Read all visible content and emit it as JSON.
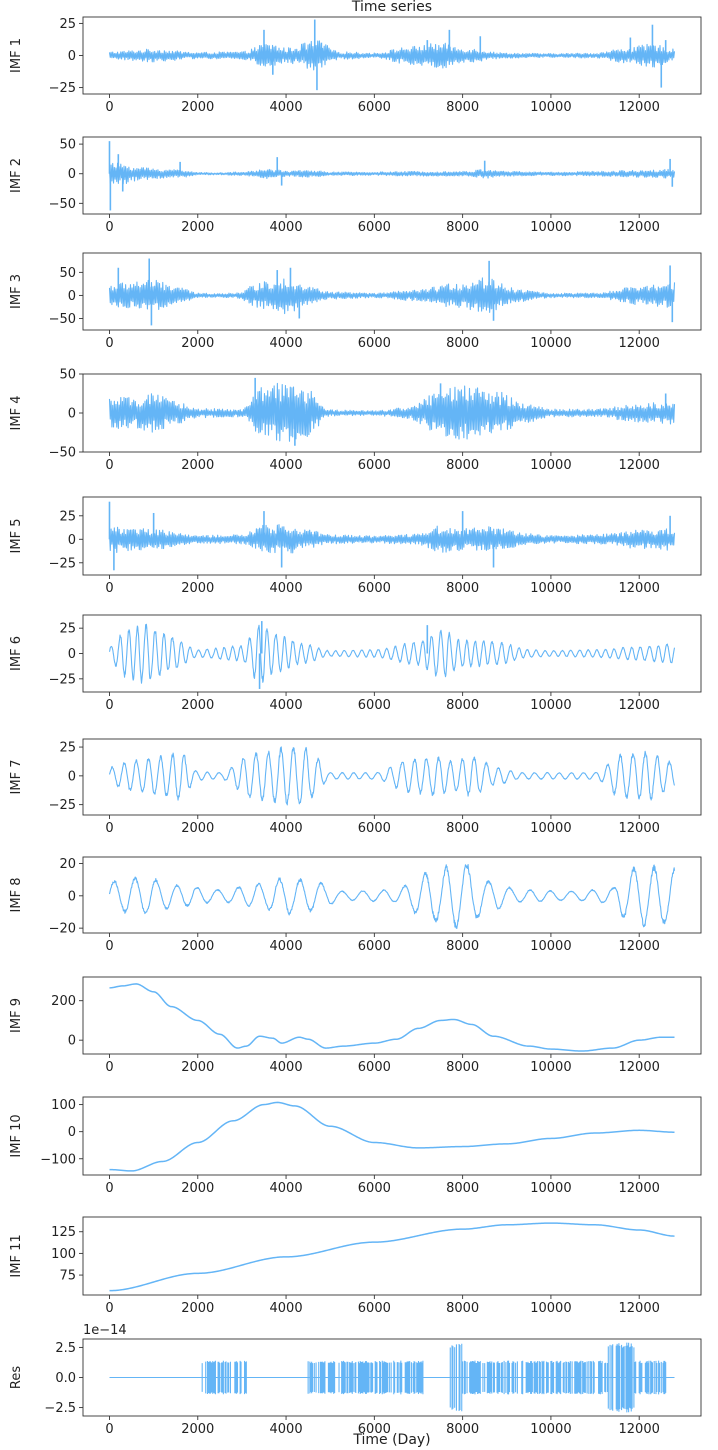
{
  "chart_data": {
    "type": "line",
    "title": "Time series",
    "xlabel": "Time (Day)",
    "xlim": [
      -600,
      13400
    ],
    "xticks": [
      0,
      2000,
      4000,
      6000,
      8000,
      10000,
      12000
    ],
    "x_range": [
      0,
      12800
    ],
    "line_color": "#64b5f6",
    "subplots": [
      {
        "ylabel": "IMF 1",
        "ylim": [
          -30,
          30
        ],
        "yticks": [
          -25,
          0,
          25
        ],
        "mode": "noise",
        "envelope": [
          [
            0,
            3
          ],
          [
            1000,
            5
          ],
          [
            2000,
            2.5
          ],
          [
            3000,
            3
          ],
          [
            3600,
            10
          ],
          [
            4000,
            6
          ],
          [
            4700,
            12
          ],
          [
            5200,
            3
          ],
          [
            6000,
            2
          ],
          [
            6800,
            7
          ],
          [
            7500,
            10
          ],
          [
            8000,
            6
          ],
          [
            9000,
            2
          ],
          [
            10000,
            1.5
          ],
          [
            11000,
            2
          ],
          [
            11700,
            6
          ],
          [
            12300,
            9
          ],
          [
            12800,
            5
          ]
        ],
        "spikes": [
          [
            3500,
            20
          ],
          [
            3700,
            -15
          ],
          [
            4650,
            28
          ],
          [
            4700,
            -27
          ],
          [
            4800,
            10
          ],
          [
            7200,
            12
          ],
          [
            7700,
            20
          ],
          [
            8400,
            15
          ],
          [
            11800,
            14
          ],
          [
            12300,
            24
          ],
          [
            12500,
            -25
          ],
          [
            12600,
            12
          ]
        ]
      },
      {
        "ylabel": "IMF 2",
        "ylim": [
          -68,
          62
        ],
        "yticks": [
          -50,
          0,
          50
        ],
        "mode": "noise",
        "envelope": [
          [
            0,
            18
          ],
          [
            300,
            18
          ],
          [
            600,
            12
          ],
          [
            1200,
            8
          ],
          [
            1700,
            7
          ],
          [
            2000,
            2
          ],
          [
            2500,
            2
          ],
          [
            3000,
            3
          ],
          [
            3600,
            8
          ],
          [
            4000,
            5
          ],
          [
            4600,
            6
          ],
          [
            5000,
            3
          ],
          [
            6000,
            3
          ],
          [
            7000,
            4
          ],
          [
            8000,
            4
          ],
          [
            8600,
            8
          ],
          [
            9000,
            4
          ],
          [
            10000,
            3
          ],
          [
            11000,
            4
          ],
          [
            12000,
            6
          ],
          [
            12800,
            8
          ]
        ],
        "spikes": [
          [
            0,
            55
          ],
          [
            20,
            -62
          ],
          [
            200,
            33
          ],
          [
            300,
            -30
          ],
          [
            1600,
            20
          ],
          [
            3800,
            28
          ],
          [
            3900,
            -20
          ],
          [
            8500,
            22
          ],
          [
            12700,
            25
          ],
          [
            12750,
            -22
          ]
        ]
      },
      {
        "ylabel": "IMF 3",
        "ylim": [
          -75,
          92
        ],
        "yticks": [
          -50,
          0,
          50
        ],
        "mode": "noise",
        "envelope": [
          [
            0,
            25
          ],
          [
            900,
            35
          ],
          [
            1500,
            22
          ],
          [
            2000,
            5
          ],
          [
            2800,
            5
          ],
          [
            3500,
            30
          ],
          [
            4000,
            40
          ],
          [
            4500,
            20
          ],
          [
            5000,
            8
          ],
          [
            6000,
            5
          ],
          [
            7000,
            12
          ],
          [
            7700,
            25
          ],
          [
            8600,
            40
          ],
          [
            9200,
            15
          ],
          [
            10000,
            5
          ],
          [
            11000,
            5
          ],
          [
            12000,
            20
          ],
          [
            12800,
            30
          ]
        ],
        "spikes": [
          [
            200,
            60
          ],
          [
            900,
            80
          ],
          [
            950,
            -65
          ],
          [
            3800,
            55
          ],
          [
            4100,
            60
          ],
          [
            4300,
            -50
          ],
          [
            8600,
            75
          ],
          [
            8700,
            -55
          ],
          [
            12700,
            65
          ],
          [
            12750,
            -58
          ]
        ]
      },
      {
        "ylabel": "IMF 4",
        "ylim": [
          -50,
          50
        ],
        "yticks": [
          -50,
          0,
          50
        ],
        "mode": "noise",
        "envelope": [
          [
            0,
            20
          ],
          [
            500,
            20
          ],
          [
            1000,
            25
          ],
          [
            1500,
            15
          ],
          [
            2000,
            6
          ],
          [
            3000,
            5
          ],
          [
            3500,
            35
          ],
          [
            4000,
            40
          ],
          [
            4500,
            30
          ],
          [
            5000,
            4
          ],
          [
            6000,
            3
          ],
          [
            6800,
            8
          ],
          [
            7500,
            30
          ],
          [
            8000,
            35
          ],
          [
            8800,
            28
          ],
          [
            9500,
            12
          ],
          [
            10000,
            5
          ],
          [
            11000,
            5
          ],
          [
            12000,
            12
          ],
          [
            12800,
            15
          ]
        ],
        "spikes": [
          [
            3300,
            45
          ],
          [
            4200,
            -42
          ],
          [
            7500,
            38
          ],
          [
            12600,
            25
          ]
        ]
      },
      {
        "ylabel": "IMF 5",
        "ylim": [
          -38,
          45
        ],
        "yticks": [
          -25,
          0,
          25
        ],
        "mode": "noise",
        "envelope": [
          [
            0,
            15
          ],
          [
            500,
            12
          ],
          [
            1200,
            10
          ],
          [
            2000,
            4
          ],
          [
            3000,
            5
          ],
          [
            3500,
            15
          ],
          [
            4000,
            16
          ],
          [
            4500,
            10
          ],
          [
            5000,
            5
          ],
          [
            6000,
            4
          ],
          [
            7000,
            6
          ],
          [
            7500,
            15
          ],
          [
            8000,
            12
          ],
          [
            8600,
            14
          ],
          [
            9500,
            6
          ],
          [
            10000,
            4
          ],
          [
            11000,
            5
          ],
          [
            12000,
            10
          ],
          [
            12800,
            12
          ]
        ],
        "spikes": [
          [
            0,
            40
          ],
          [
            100,
            -33
          ],
          [
            1000,
            28
          ],
          [
            3500,
            30
          ],
          [
            3900,
            -30
          ],
          [
            8000,
            30
          ],
          [
            8700,
            -30
          ],
          [
            12700,
            25
          ]
        ]
      },
      {
        "ylabel": "IMF 6",
        "ylim": [
          -38,
          38
        ],
        "yticks": [
          -25,
          0,
          25
        ],
        "mode": "wave",
        "period": 200,
        "envelope": [
          [
            0,
            8
          ],
          [
            400,
            25
          ],
          [
            800,
            30
          ],
          [
            1400,
            18
          ],
          [
            2000,
            4
          ],
          [
            3000,
            8
          ],
          [
            3400,
            30
          ],
          [
            3800,
            20
          ],
          [
            4400,
            10
          ],
          [
            5000,
            3
          ],
          [
            6000,
            4
          ],
          [
            7000,
            12
          ],
          [
            7500,
            25
          ],
          [
            8000,
            14
          ],
          [
            8800,
            12
          ],
          [
            9500,
            4
          ],
          [
            10000,
            3
          ],
          [
            11000,
            4
          ],
          [
            12000,
            7
          ],
          [
            12800,
            10
          ]
        ],
        "spikes": [
          [
            3400,
            -35
          ],
          [
            3450,
            32
          ],
          [
            7200,
            28
          ]
        ]
      },
      {
        "ylabel": "IMF 7",
        "ylim": [
          -34,
          32
        ],
        "yticks": [
          -25,
          0,
          25
        ],
        "mode": "wave",
        "period": 280,
        "envelope": [
          [
            0,
            8
          ],
          [
            500,
            14
          ],
          [
            1200,
            18
          ],
          [
            1600,
            22
          ],
          [
            2000,
            4
          ],
          [
            2500,
            3
          ],
          [
            3300,
            22
          ],
          [
            3700,
            24
          ],
          [
            4000,
            26
          ],
          [
            4400,
            28
          ],
          [
            4600,
            20
          ],
          [
            5000,
            3
          ],
          [
            6000,
            3
          ],
          [
            6800,
            15
          ],
          [
            7300,
            18
          ],
          [
            7800,
            14
          ],
          [
            8200,
            18
          ],
          [
            8800,
            8
          ],
          [
            9300,
            3
          ],
          [
            10000,
            3
          ],
          [
            11000,
            3
          ],
          [
            11600,
            20
          ],
          [
            12200,
            22
          ],
          [
            12800,
            12
          ]
        ],
        "spikes": []
      },
      {
        "ylabel": "IMF 8",
        "ylim": [
          -23,
          24
        ],
        "yticks": [
          -20,
          0,
          20
        ],
        "mode": "wave",
        "period": 480,
        "envelope": [
          [
            0,
            10
          ],
          [
            800,
            12
          ],
          [
            1600,
            7
          ],
          [
            2500,
            4
          ],
          [
            3400,
            8
          ],
          [
            4000,
            12
          ],
          [
            4600,
            10
          ],
          [
            5300,
            3
          ],
          [
            6400,
            4
          ],
          [
            7300,
            16
          ],
          [
            7700,
            20
          ],
          [
            8000,
            22
          ],
          [
            8600,
            10
          ],
          [
            9300,
            4
          ],
          [
            10500,
            3
          ],
          [
            11400,
            5
          ],
          [
            11600,
            14
          ],
          [
            12000,
            20
          ],
          [
            12800,
            18
          ]
        ],
        "spikes": []
      },
      {
        "ylabel": "IMF 9",
        "ylim": [
          -70,
          320
        ],
        "yticks": [
          0,
          200
        ],
        "mode": "smooth",
        "points": [
          [
            0,
            265
          ],
          [
            300,
            275
          ],
          [
            600,
            285
          ],
          [
            1000,
            245
          ],
          [
            1400,
            170
          ],
          [
            2000,
            100
          ],
          [
            2500,
            30
          ],
          [
            2900,
            -40
          ],
          [
            3100,
            -30
          ],
          [
            3400,
            20
          ],
          [
            3700,
            10
          ],
          [
            3900,
            -15
          ],
          [
            4300,
            15
          ],
          [
            4500,
            5
          ],
          [
            4900,
            -40
          ],
          [
            5300,
            -30
          ],
          [
            6000,
            -15
          ],
          [
            6500,
            5
          ],
          [
            7000,
            60
          ],
          [
            7500,
            100
          ],
          [
            7800,
            105
          ],
          [
            8200,
            80
          ],
          [
            8700,
            20
          ],
          [
            9500,
            -30
          ],
          [
            10000,
            -45
          ],
          [
            10700,
            -55
          ],
          [
            11400,
            -40
          ],
          [
            12000,
            0
          ],
          [
            12500,
            15
          ],
          [
            12800,
            15
          ]
        ]
      },
      {
        "ylabel": "IMF 10",
        "ylim": [
          -160,
          128
        ],
        "yticks": [
          -100,
          0,
          100
        ],
        "mode": "smooth",
        "points": [
          [
            0,
            -140
          ],
          [
            500,
            -145
          ],
          [
            1200,
            -110
          ],
          [
            2000,
            -40
          ],
          [
            2800,
            40
          ],
          [
            3500,
            100
          ],
          [
            3800,
            108
          ],
          [
            4200,
            95
          ],
          [
            5000,
            20
          ],
          [
            6000,
            -40
          ],
          [
            7000,
            -60
          ],
          [
            8000,
            -55
          ],
          [
            9000,
            -45
          ],
          [
            10000,
            -25
          ],
          [
            11000,
            -5
          ],
          [
            12000,
            5
          ],
          [
            12800,
            -2
          ]
        ]
      },
      {
        "ylabel": "IMF 11",
        "ylim": [
          52,
          142
        ],
        "yticks": [
          75,
          100,
          125
        ],
        "mode": "smooth",
        "points": [
          [
            0,
            57
          ],
          [
            2000,
            77
          ],
          [
            4000,
            96
          ],
          [
            6000,
            113
          ],
          [
            8000,
            128
          ],
          [
            9000,
            133
          ],
          [
            10000,
            135
          ],
          [
            11000,
            133
          ],
          [
            12000,
            127
          ],
          [
            12800,
            120
          ]
        ]
      },
      {
        "ylabel": "Res",
        "ylim": [
          -3.2,
          3.2
        ],
        "yticks": [
          -2.5,
          0,
          2.5
        ],
        "yticklabels": [
          "−2.5",
          "0.0",
          "2.5"
        ],
        "offset_text": "1e−14",
        "mode": "bursts",
        "bursts": [
          [
            2100,
            3100,
            1.4
          ],
          [
            4500,
            7100,
            1.4
          ],
          [
            7700,
            8000,
            2.9
          ],
          [
            8000,
            9000,
            1.4
          ],
          [
            9000,
            11300,
            1.4
          ],
          [
            11300,
            11900,
            2.9
          ],
          [
            11900,
            12600,
            1.4
          ]
        ]
      }
    ]
  }
}
